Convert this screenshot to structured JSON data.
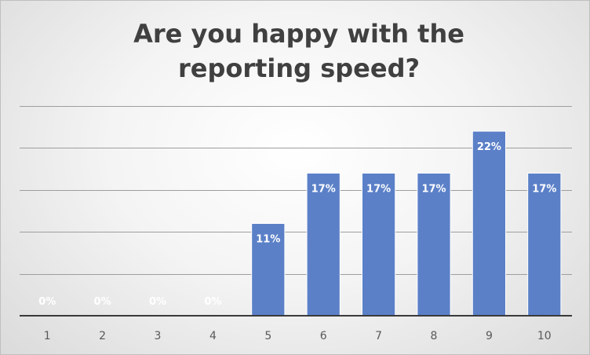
{
  "chart_data": {
    "type": "bar",
    "title": "Are you happy with the reporting speed?",
    "categories": [
      "1",
      "2",
      "3",
      "4",
      "5",
      "6",
      "7",
      "8",
      "9",
      "10"
    ],
    "values": [
      0,
      0,
      0,
      0,
      11,
      17,
      17,
      17,
      22,
      17
    ],
    "data_labels": [
      "0%",
      "0%",
      "0%",
      "0%",
      "11%",
      "17%",
      "17%",
      "17%",
      "22%",
      "17%"
    ],
    "unit": "%",
    "ylim": [
      0,
      25
    ],
    "grid": true,
    "legend": "none",
    "bar_color": "#5b80c8",
    "label_color_inside": "#ffffff"
  }
}
